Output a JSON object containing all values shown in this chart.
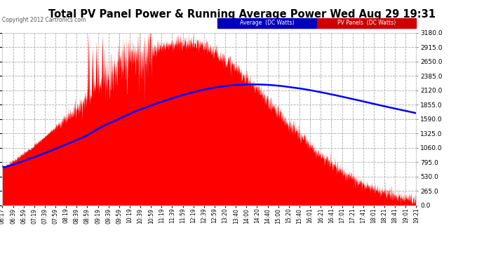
{
  "title": "Total PV Panel Power & Running Average Power Wed Aug 29 19:31",
  "copyright": "Copyright 2012 Cartronics.com",
  "yticks": [
    0.0,
    265.0,
    530.0,
    795.0,
    1060.0,
    1325.0,
    1590.0,
    1855.0,
    2120.0,
    2385.0,
    2650.0,
    2915.0,
    3180.0
  ],
  "ymax": 3180.0,
  "ymin": 0.0,
  "plot_bg_color": "#ffffff",
  "grid_color": "#aaaaaa",
  "pv_color": "#ff0000",
  "avg_color": "#0000ff",
  "legend_avg_bg": "#0000cc",
  "legend_pv_bg": "#cc0000",
  "xtick_labels": [
    "06:17",
    "06:39",
    "06:59",
    "07:19",
    "07:39",
    "07:59",
    "08:19",
    "08:39",
    "08:59",
    "09:19",
    "09:39",
    "09:59",
    "10:19",
    "10:39",
    "10:59",
    "11:19",
    "11:39",
    "11:59",
    "12:19",
    "12:39",
    "12:59",
    "13:20",
    "13:40",
    "14:00",
    "14:20",
    "14:40",
    "15:00",
    "15:20",
    "15:40",
    "16:01",
    "16:21",
    "16:41",
    "17:01",
    "17:21",
    "17:41",
    "18:01",
    "18:21",
    "18:41",
    "19:01",
    "19:21"
  ]
}
